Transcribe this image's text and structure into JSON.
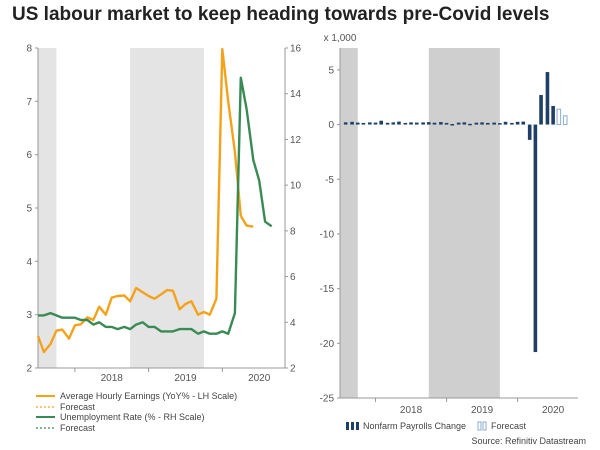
{
  "title": "US labour market to keep heading towards pre-Covid levels",
  "source": "Source: Refinitiv Datastream",
  "chart_data": [
    {
      "type": "line",
      "x_tick_labels": [
        "2018",
        "2019",
        "2020"
      ],
      "x_tick_dates": [
        2018.5,
        2019.5,
        2020.5
      ],
      "xlim": [
        2017.5,
        2020.85
      ],
      "shaded_periods": [
        [
          2017.5,
          2017.75
        ],
        [
          2018.75,
          2019.75
        ]
      ],
      "left_axis": {
        "ylim": [
          2,
          8
        ],
        "ticks": [
          "2",
          "3",
          "4",
          "5",
          "6",
          "7",
          "8"
        ]
      },
      "right_axis": {
        "ylim": [
          2,
          16
        ],
        "ticks": [
          "2",
          "4",
          "6",
          "8",
          "10",
          "12",
          "14",
          "16"
        ]
      },
      "series": [
        {
          "name": "Average Hourly Earnings",
          "legend": "Average Hourly Earnings  (YoY% - LH Scale)",
          "axis": "left",
          "color": "#f5a21b",
          "dates": [
            2017.5,
            2017.58,
            2017.67,
            2017.75,
            2017.83,
            2017.92,
            2018.0,
            2018.08,
            2018.17,
            2018.25,
            2018.33,
            2018.42,
            2018.5,
            2018.58,
            2018.67,
            2018.75,
            2018.83,
            2018.92,
            2019.0,
            2019.08,
            2019.17,
            2019.25,
            2019.33,
            2019.42,
            2019.5,
            2019.58,
            2019.67,
            2019.75,
            2019.83,
            2019.92,
            2020.0,
            2020.08,
            2020.17,
            2020.25
          ],
          "values": [
            2.6,
            2.3,
            2.45,
            2.7,
            2.72,
            2.55,
            2.8,
            2.82,
            2.95,
            2.9,
            3.15,
            3.0,
            3.32,
            3.35,
            3.36,
            3.25,
            3.5,
            3.42,
            3.35,
            3.3,
            3.38,
            3.46,
            3.45,
            3.1,
            3.2,
            3.25,
            3.0,
            3.05,
            3.0,
            3.3,
            7.98,
            7.0,
            6.05,
            4.85
          ]
        },
        {
          "name": "Average Hourly Earnings Forecast",
          "legend": "Forecast",
          "axis": "left",
          "color": "#f5a21b",
          "dashed": true,
          "dates": [
            2020.25,
            2020.33,
            2020.42
          ],
          "values": [
            4.85,
            4.67,
            4.65
          ]
        },
        {
          "name": "Unemployment Rate",
          "legend": "Unemployment Rate (% - RH Scale)",
          "axis": "right",
          "color": "#3a8a55",
          "dates": [
            2017.5,
            2017.58,
            2017.67,
            2017.75,
            2017.83,
            2017.92,
            2018.0,
            2018.08,
            2018.17,
            2018.25,
            2018.33,
            2018.42,
            2018.5,
            2018.58,
            2018.67,
            2018.75,
            2018.83,
            2018.92,
            2019.0,
            2019.08,
            2019.17,
            2019.25,
            2019.33,
            2019.42,
            2019.5,
            2019.58,
            2019.67,
            2019.75,
            2019.83,
            2019.92,
            2020.0,
            2020.08,
            2020.17,
            2020.25,
            2020.33
          ],
          "values": [
            4.3,
            4.3,
            4.4,
            4.3,
            4.2,
            4.2,
            4.2,
            4.1,
            4.1,
            3.9,
            4.0,
            3.8,
            3.8,
            3.7,
            3.8,
            3.7,
            3.9,
            4.0,
            3.8,
            3.8,
            3.6,
            3.6,
            3.6,
            3.7,
            3.7,
            3.7,
            3.5,
            3.6,
            3.5,
            3.5,
            3.6,
            3.5,
            4.4,
            14.7,
            13.3
          ]
        },
        {
          "name": "Unemployment Rate Forecast",
          "legend": "Forecast",
          "axis": "right",
          "color": "#3a8a55",
          "dashed": true,
          "dates": [
            2020.33,
            2020.42,
            2020.5,
            2020.58,
            2020.67
          ],
          "values": [
            13.3,
            11.1,
            10.2,
            8.4,
            8.2
          ]
        }
      ]
    },
    {
      "type": "bar",
      "unit_label": "x 1,000",
      "x_tick_labels": [
        "2018",
        "2019",
        "2020"
      ],
      "x_tick_dates": [
        2018.5,
        2019.5,
        2020.5
      ],
      "xlim": [
        2017.5,
        2020.85
      ],
      "shaded_periods": [
        [
          2017.5,
          2017.75
        ],
        [
          2018.75,
          2019.75
        ]
      ],
      "ylim": [
        -25,
        7
      ],
      "y_ticks": [
        "5",
        "0",
        "-5",
        "-10",
        "-15",
        "-20",
        "-25"
      ],
      "y_tick_values": [
        5,
        0,
        -5,
        -10,
        -15,
        -20,
        -25
      ],
      "series": [
        {
          "name": "Nonfarm Payrolls Change",
          "legend": "Nonfarm Payrolls Change",
          "color": "#1f3f66",
          "dates": [
            2017.58,
            2017.67,
            2017.75,
            2017.83,
            2017.92,
            2018.0,
            2018.08,
            2018.17,
            2018.25,
            2018.33,
            2018.42,
            2018.5,
            2018.58,
            2018.67,
            2018.75,
            2018.83,
            2018.92,
            2019.0,
            2019.08,
            2019.17,
            2019.25,
            2019.33,
            2019.42,
            2019.5,
            2019.58,
            2019.67,
            2019.75,
            2019.83,
            2019.92,
            2020.0,
            2020.08,
            2020.17,
            2020.25,
            2020.33,
            2020.42,
            2020.5
          ],
          "values": [
            0.2,
            0.25,
            0.18,
            0.15,
            0.2,
            0.18,
            0.35,
            0.16,
            0.2,
            0.27,
            0.15,
            0.2,
            0.18,
            0.2,
            0.22,
            0.17,
            0.23,
            0.15,
            0.05,
            0.18,
            0.2,
            0.07,
            0.17,
            0.2,
            0.15,
            0.18,
            0.13,
            0.25,
            0.15,
            0.25,
            0.27,
            -1.4,
            -20.8,
            2.7,
            4.8,
            1.7
          ]
        },
        {
          "name": "Nonfarm Payrolls Forecast",
          "legend": "Forecast",
          "color": "#8aaed0",
          "hollow": true,
          "dates": [
            2020.58,
            2020.67
          ],
          "values": [
            1.4,
            0.8
          ]
        }
      ]
    }
  ]
}
